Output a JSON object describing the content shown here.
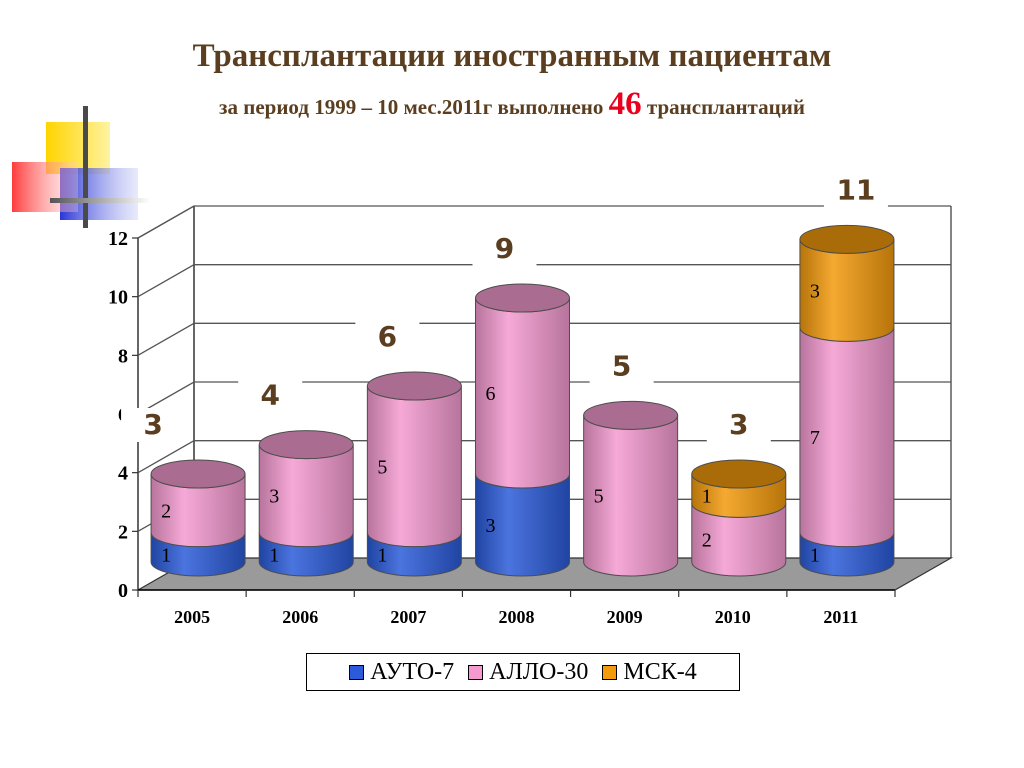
{
  "title": "Трансплантации иностранным пациентам",
  "subtitle": {
    "prefix": "за период 1999 – 10 мес.2011г  выполнено",
    "count": "46",
    "suffix": "трансплантаций"
  },
  "chart_data": {
    "type": "bar",
    "stacked": true,
    "categories": [
      "2005",
      "2006",
      "2007",
      "2008",
      "2009",
      "2010",
      "2011"
    ],
    "series": [
      {
        "name": "АУТО-7",
        "values": [
          1,
          1,
          1,
          3,
          0,
          0,
          1
        ],
        "color": "#2b5bd8"
      },
      {
        "name": "АЛЛО-30",
        "values": [
          2,
          3,
          5,
          6,
          5,
          2,
          7
        ],
        "color": "#f49ad0"
      },
      {
        "name": "МСК-4",
        "values": [
          0,
          0,
          0,
          0,
          0,
          1,
          3
        ],
        "color": "#f39a0d"
      }
    ],
    "totals": [
      "3",
      "4",
      "6",
      "9",
      "5",
      "3",
      "11"
    ],
    "ylim": [
      0,
      12
    ],
    "yticks": [
      0,
      2,
      4,
      6,
      8,
      10,
      12
    ],
    "grid": true,
    "legend_position": "bottom"
  }
}
